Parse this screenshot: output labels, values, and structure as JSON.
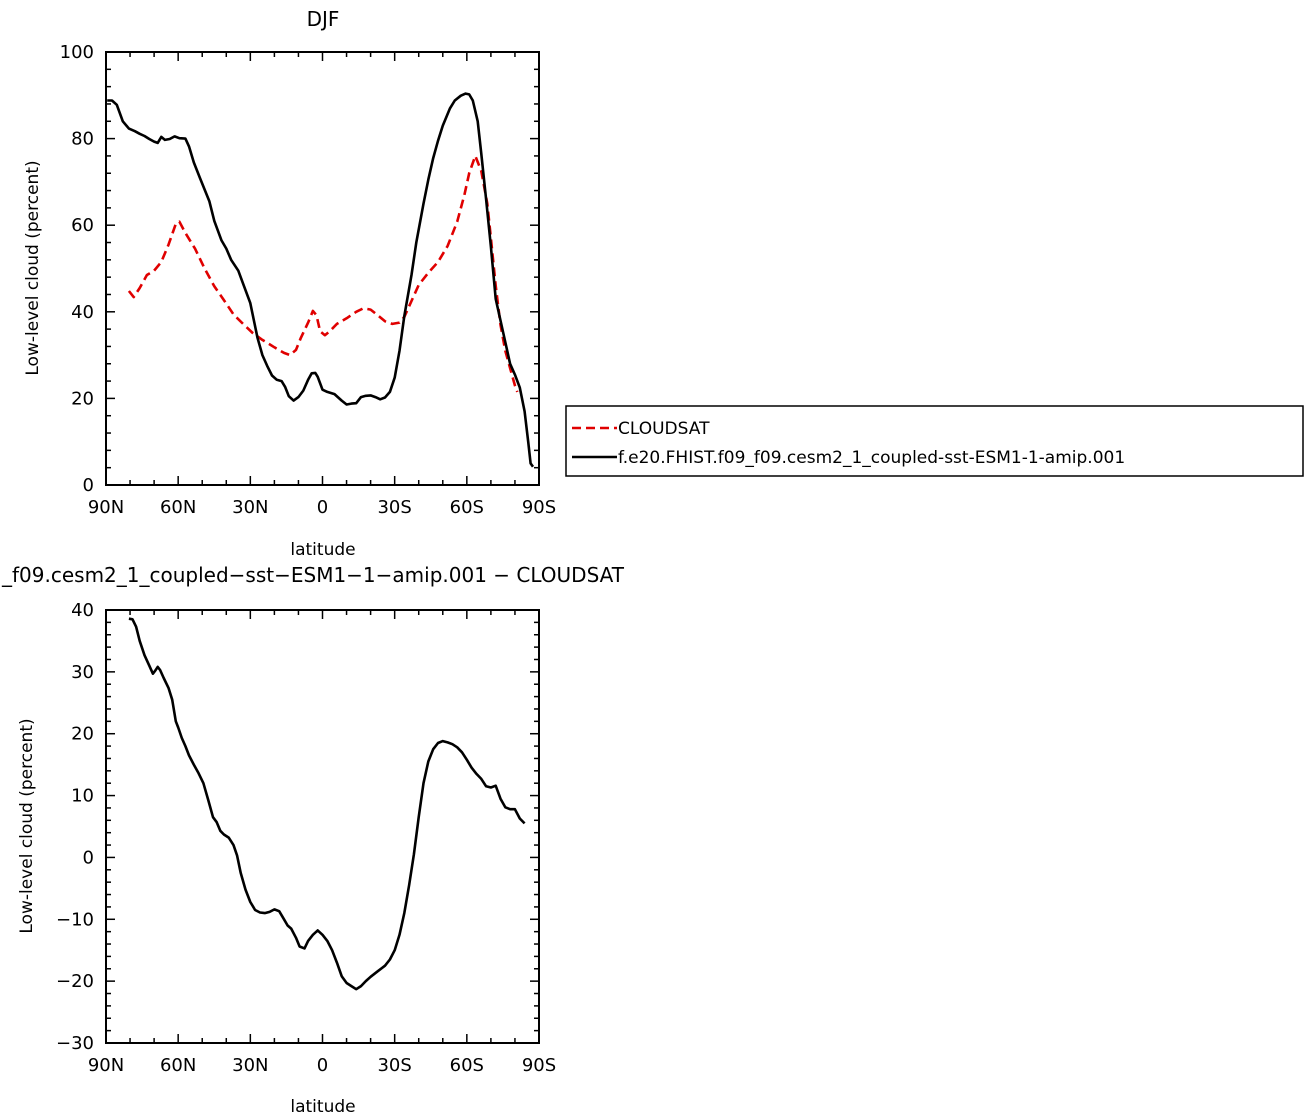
{
  "chart_data": [
    {
      "type": "line",
      "title": "DJF",
      "xlabel": "latitude",
      "ylabel": "Low-level cloud (percent)",
      "xlim": [
        -90,
        90
      ],
      "ylim": [
        0,
        100
      ],
      "xticks": [
        -90,
        -60,
        -30,
        0,
        30,
        60,
        90
      ],
      "xtick_labels": [
        "90N",
        "60N",
        "30N",
        "0",
        "30S",
        "60S",
        "90S"
      ],
      "yticks": [
        0,
        20,
        40,
        60,
        80,
        100
      ],
      "ytick_labels": [
        "0",
        "20",
        "40",
        "60",
        "80",
        "100"
      ],
      "legend_position": "right",
      "series": [
        {
          "name": "CLOUDSAT",
          "color": "#e00000",
          "dash": "dashed",
          "points": [
            [
              -80.5,
              44.8
            ],
            [
              -78.5,
              43.4
            ],
            [
              -76,
              45.5
            ],
            [
              -73,
              48.5
            ],
            [
              -70,
              49.5
            ],
            [
              -67,
              51.5
            ],
            [
              -64,
              55.5
            ],
            [
              -61,
              60.3
            ],
            [
              -59.5,
              60.8
            ],
            [
              -57,
              58.2
            ],
            [
              -53,
              54.6
            ],
            [
              -49,
              50
            ],
            [
              -45,
              45.9
            ],
            [
              -41,
              42.7
            ],
            [
              -37,
              39.4
            ],
            [
              -33,
              37.2
            ],
            [
              -29,
              35.1
            ],
            [
              -25,
              33.5
            ],
            [
              -20,
              31.8
            ],
            [
              -16,
              30.5
            ],
            [
              -13.5,
              30
            ],
            [
              -11,
              31.2
            ],
            [
              -9,
              34
            ],
            [
              -6,
              37.5
            ],
            [
              -4,
              40.2
            ],
            [
              -2.5,
              39.2
            ],
            [
              -1,
              35.5
            ],
            [
              1,
              34.6
            ],
            [
              3,
              35.5
            ],
            [
              6,
              37.2
            ],
            [
              10,
              38.5
            ],
            [
              14,
              40
            ],
            [
              17,
              40.8
            ],
            [
              20,
              40.5
            ],
            [
              23,
              39.2
            ],
            [
              26,
              37.8
            ],
            [
              29,
              37.2
            ],
            [
              32,
              37.5
            ],
            [
              34,
              38.8
            ],
            [
              37,
              42.5
            ],
            [
              40,
              46.2
            ],
            [
              44,
              49
            ],
            [
              48,
              51.5
            ],
            [
              52,
              55.2
            ],
            [
              56,
              60.8
            ],
            [
              59,
              67
            ],
            [
              61,
              72
            ],
            [
              63.5,
              76
            ],
            [
              66,
              72.5
            ],
            [
              68.5,
              65
            ],
            [
              70,
              57
            ],
            [
              72,
              46
            ],
            [
              74,
              37
            ],
            [
              76,
              31
            ],
            [
              78,
              27
            ],
            [
              80,
              23
            ],
            [
              81,
              21.5
            ]
          ]
        },
        {
          "name": "f.e20.FHIST.f09_f09.cesm2_1_coupled-sst-ESM1-1-amip.001",
          "color": "#000000",
          "dash": "solid",
          "points": [
            [
              -89.5,
              88.8
            ],
            [
              -87.5,
              88.8
            ],
            [
              -85.5,
              87.8
            ],
            [
              -83,
              84
            ],
            [
              -80.5,
              82.3
            ],
            [
              -78,
              81.7
            ],
            [
              -76,
              81.1
            ],
            [
              -74,
              80.6
            ],
            [
              -72,
              79.9
            ],
            [
              -70,
              79.3
            ],
            [
              -68.5,
              79
            ],
            [
              -67,
              80.4
            ],
            [
              -65.5,
              79.7
            ],
            [
              -63.5,
              79.9
            ],
            [
              -61.5,
              80.5
            ],
            [
              -59.5,
              80.1
            ],
            [
              -57,
              80
            ],
            [
              -55.5,
              78.2
            ],
            [
              -53.5,
              74.5
            ],
            [
              -51,
              71
            ],
            [
              -47,
              65.5
            ],
            [
              -45,
              61
            ],
            [
              -42,
              56.5
            ],
            [
              -40,
              54.6
            ],
            [
              -38,
              52
            ],
            [
              -35,
              49.5
            ],
            [
              -33,
              46.5
            ],
            [
              -30,
              42
            ],
            [
              -28.5,
              38
            ],
            [
              -27,
              34
            ],
            [
              -25,
              30
            ],
            [
              -23,
              27.5
            ],
            [
              -21,
              25.3
            ],
            [
              -19,
              24.3
            ],
            [
              -17,
              24
            ],
            [
              -15.5,
              22.6
            ],
            [
              -14,
              20.5
            ],
            [
              -12,
              19.5
            ],
            [
              -10,
              20.3
            ],
            [
              -8,
              21.8
            ],
            [
              -6,
              24.3
            ],
            [
              -4.5,
              25.8
            ],
            [
              -3,
              25.9
            ],
            [
              -2,
              25
            ],
            [
              0,
              22
            ],
            [
              2,
              21.5
            ],
            [
              5,
              21
            ],
            [
              8,
              19.5
            ],
            [
              10,
              18.6
            ],
            [
              12,
              18.8
            ],
            [
              14,
              18.9
            ],
            [
              16,
              20.3
            ],
            [
              18,
              20.6
            ],
            [
              20,
              20.7
            ],
            [
              22,
              20.3
            ],
            [
              24,
              19.8
            ],
            [
              26,
              20.2
            ],
            [
              28,
              21.5
            ],
            [
              30,
              24.8
            ],
            [
              32,
              31
            ],
            [
              34,
              39
            ],
            [
              37,
              48.5
            ],
            [
              39,
              56
            ],
            [
              42,
              65
            ],
            [
              44,
              70.5
            ],
            [
              46,
              75.5
            ],
            [
              48,
              79.5
            ],
            [
              50,
              83
            ],
            [
              53,
              87
            ],
            [
              55,
              88.8
            ],
            [
              57.5,
              89.9
            ],
            [
              59.5,
              90.4
            ],
            [
              61,
              90.2
            ],
            [
              62.5,
              88.8
            ],
            [
              64.5,
              84
            ],
            [
              66,
              76.5
            ],
            [
              68,
              66
            ],
            [
              70,
              55
            ],
            [
              72,
              43
            ],
            [
              74,
              38
            ],
            [
              76,
              33
            ],
            [
              78,
              28
            ],
            [
              80,
              25.5
            ],
            [
              82,
              22.5
            ],
            [
              84,
              17
            ],
            [
              85.5,
              10
            ],
            [
              86.5,
              5
            ],
            [
              87.5,
              4.2
            ]
          ]
        }
      ]
    },
    {
      "type": "line",
      "title": "_f09.cesm2_1_coupled−sst−ESM1−1−amip.001  −  CLOUDSAT",
      "xlabel": "latitude",
      "ylabel": "Low-level cloud (percent)",
      "xlim": [
        -90,
        90
      ],
      "ylim": [
        -30,
        40
      ],
      "xticks": [
        -90,
        -60,
        -30,
        0,
        30,
        60,
        90
      ],
      "xtick_labels": [
        "90N",
        "60N",
        "30N",
        "0",
        "30S",
        "60S",
        "90S"
      ],
      "yticks": [
        -30,
        -20,
        -10,
        0,
        10,
        20,
        30,
        40
      ],
      "ytick_labels": [
        "−30",
        "−20",
        "−10",
        "0",
        "10",
        "20",
        "30",
        "40"
      ],
      "series": [
        {
          "color": "#000000",
          "dash": "solid",
          "points": [
            [
              -80.5,
              38.6
            ],
            [
              -79,
              38.5
            ],
            [
              -77.5,
              37.3
            ],
            [
              -76,
              35
            ],
            [
              -74,
              32.7
            ],
            [
              -72,
              31
            ],
            [
              -70.5,
              29.7
            ],
            [
              -69.5,
              30.2
            ],
            [
              -68.5,
              30.8
            ],
            [
              -67.5,
              30.3
            ],
            [
              -66,
              29
            ],
            [
              -64,
              27.4
            ],
            [
              -62.5,
              25.5
            ],
            [
              -61,
              22
            ],
            [
              -60,
              21
            ],
            [
              -58.5,
              19.3
            ],
            [
              -57,
              18
            ],
            [
              -55.5,
              16.5
            ],
            [
              -53.5,
              15
            ],
            [
              -51.5,
              13.6
            ],
            [
              -49.5,
              12
            ],
            [
              -47.5,
              9.3
            ],
            [
              -45.5,
              6.5
            ],
            [
              -44,
              5.7
            ],
            [
              -42.5,
              4.3
            ],
            [
              -41,
              3.7
            ],
            [
              -39,
              3.2
            ],
            [
              -37,
              2
            ],
            [
              -35.5,
              0.3
            ],
            [
              -34,
              -2.5
            ],
            [
              -32,
              -5.2
            ],
            [
              -30,
              -7.2
            ],
            [
              -28,
              -8.5
            ],
            [
              -26,
              -8.9
            ],
            [
              -24,
              -9
            ],
            [
              -22,
              -8.8
            ],
            [
              -20,
              -8.4
            ],
            [
              -18,
              -8.7
            ],
            [
              -16,
              -10
            ],
            [
              -14.5,
              -11
            ],
            [
              -13,
              -11.5
            ],
            [
              -11,
              -13
            ],
            [
              -9.5,
              -14.4
            ],
            [
              -7.5,
              -14.7
            ],
            [
              -6,
              -13.5
            ],
            [
              -4,
              -12.5
            ],
            [
              -2,
              -11.8
            ],
            [
              0,
              -12.5
            ],
            [
              2,
              -13.5
            ],
            [
              4,
              -15
            ],
            [
              6,
              -17
            ],
            [
              8,
              -19.2
            ],
            [
              10,
              -20.3
            ],
            [
              12,
              -20.8
            ],
            [
              14,
              -21.3
            ],
            [
              16,
              -20.8
            ],
            [
              18,
              -20
            ],
            [
              20,
              -19.3
            ],
            [
              23,
              -18.4
            ],
            [
              26,
              -17.5
            ],
            [
              28,
              -16.5
            ],
            [
              30,
              -15
            ],
            [
              32,
              -12.5
            ],
            [
              34,
              -9
            ],
            [
              36,
              -4.5
            ],
            [
              38,
              0.5
            ],
            [
              40,
              6.5
            ],
            [
              42,
              12
            ],
            [
              44,
              15.5
            ],
            [
              46,
              17.5
            ],
            [
              48,
              18.5
            ],
            [
              50,
              18.8
            ],
            [
              52,
              18.6
            ],
            [
              54,
              18.3
            ],
            [
              56,
              17.8
            ],
            [
              58,
              17
            ],
            [
              60,
              15.8
            ],
            [
              62,
              14.5
            ],
            [
              64,
              13.5
            ],
            [
              66,
              12.7
            ],
            [
              68,
              11.5
            ],
            [
              70,
              11.3
            ],
            [
              72,
              11.6
            ],
            [
              74,
              9.5
            ],
            [
              76,
              8.1
            ],
            [
              78,
              7.8
            ],
            [
              80,
              7.8
            ],
            [
              82,
              6.3
            ],
            [
              84,
              5.5
            ]
          ]
        }
      ]
    }
  ]
}
